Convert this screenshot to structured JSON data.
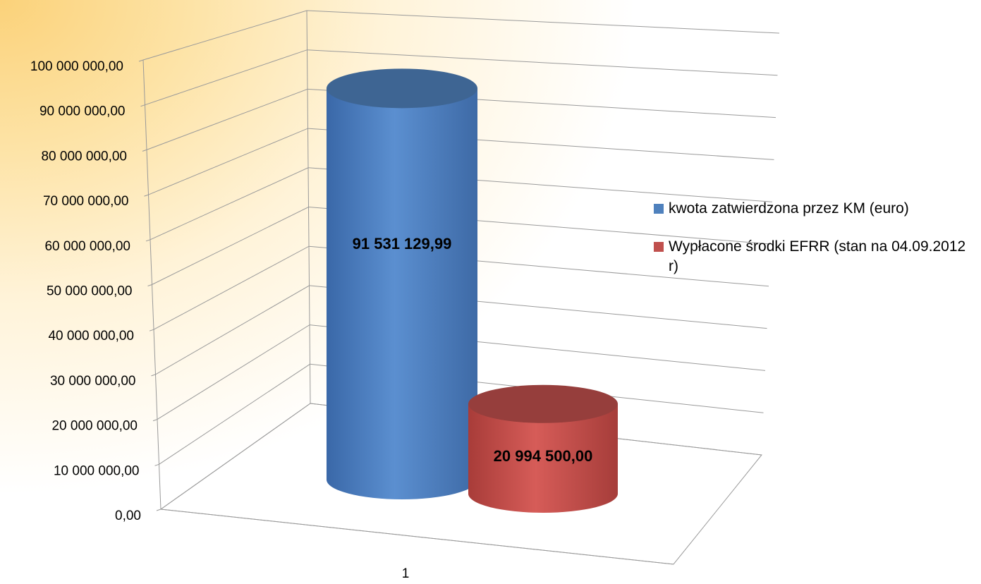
{
  "chart_data": {
    "type": "bar3d",
    "categories": [
      "1"
    ],
    "series": [
      {
        "name": "kwota zatwierdzona przez KM (euro)",
        "color": "#4f81bd",
        "values": [
          91531129.99
        ],
        "value_labels": [
          "91 531 129,99"
        ]
      },
      {
        "name": "Wypłacone środki EFRR (stan na 04.09.2012 r)",
        "color": "#c0504d",
        "values": [
          20994500
        ],
        "value_labels": [
          "20 994 500,00"
        ]
      }
    ],
    "ylim": [
      0,
      100000000
    ],
    "yticks": [
      {
        "value": 0,
        "label": "0,00"
      },
      {
        "value": 10000000,
        "label": "10 000 000,00"
      },
      {
        "value": 20000000,
        "label": "20 000 000,00"
      },
      {
        "value": 30000000,
        "label": "30 000 000,00"
      },
      {
        "value": 40000000,
        "label": "40 000 000,00"
      },
      {
        "value": 50000000,
        "label": "50 000 000,00"
      },
      {
        "value": 60000000,
        "label": "60 000 000,00"
      },
      {
        "value": 70000000,
        "label": "70 000 000,00"
      },
      {
        "value": 80000000,
        "label": "80 000 000,00"
      },
      {
        "value": 90000000,
        "label": "90 000 000,00"
      },
      {
        "value": 100000000,
        "label": "100 000 000,00"
      }
    ],
    "grid": true,
    "legend": "right"
  }
}
